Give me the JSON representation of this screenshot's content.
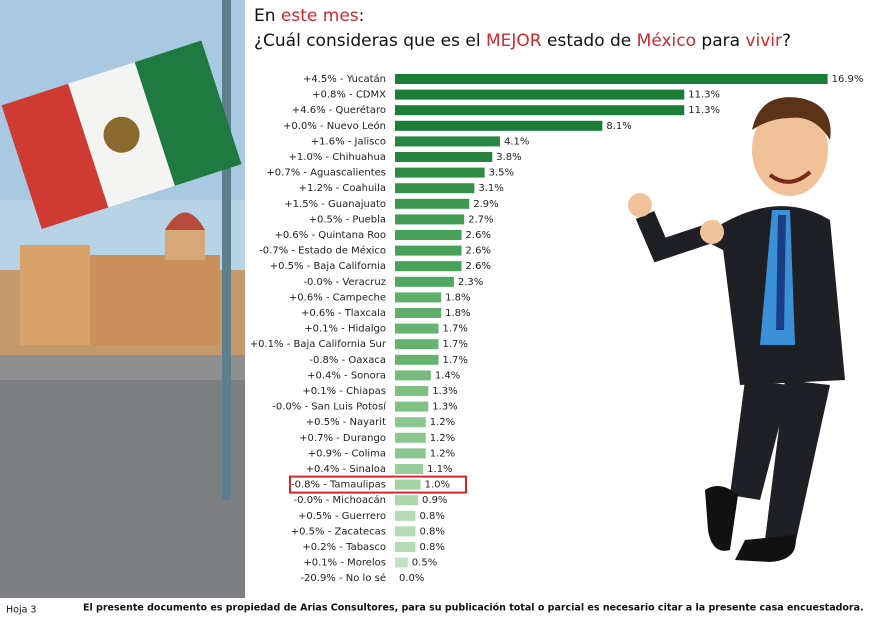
{
  "chart_data": {
    "type": "bar",
    "orientation": "horizontal",
    "title_lines": [
      [
        {
          "text": "En "
        },
        {
          "text": "este mes",
          "highlight": true
        },
        {
          "text": ":"
        }
      ],
      [
        {
          "text": "¿Cuál consideras que es el "
        },
        {
          "text": "MEJOR",
          "highlight": true
        },
        {
          "text": " estado de "
        },
        {
          "text": "México",
          "highlight": true
        },
        {
          "text": " para "
        },
        {
          "text": "vivir",
          "highlight": true
        },
        {
          "text": "?"
        }
      ]
    ],
    "categories": [
      "+4.5% - Yucatán",
      "+0.8% - CDMX",
      "+4.6% - Querétaro",
      "+0.0% - Nuevo León",
      "+1.6% - Jalisco",
      "+1.0% - Chihuahua",
      "+0.7% - Aguascalientes",
      "+1.2% - Coahuila",
      "+1.5% - Guanajuato",
      "+0.5% - Puebla",
      "+0.6% - Quintana Roo",
      "-0.7% - Estado de México",
      "+0.5% - Baja California",
      "-0.0% - Veracruz",
      "+0.6% - Campeche",
      "+0.6% - Tlaxcala",
      "+0.1% - Hidalgo",
      "+0.1% - Baja California Sur",
      "-0.8% - Oaxaca",
      "+0.4% - Sonora",
      "+0.1% - Chiapas",
      "-0.0% - San Luis Potosí",
      "+0.5% - Nayarit",
      "+0.7% - Durango",
      "+0.9% - Colima",
      "+0.4% - Sinaloa",
      "-0.8% - Tamaulipas",
      "-0.0% - Michoacán",
      "+0.5% - Guerrero",
      "+0.5% - Zacatecas",
      "+0.2% - Tabasco",
      "+0.1% - Morelos",
      "-20.9% - No lo sé"
    ],
    "values": [
      16.9,
      11.3,
      11.3,
      8.1,
      4.1,
      3.8,
      3.5,
      3.1,
      2.9,
      2.7,
      2.6,
      2.6,
      2.6,
      2.3,
      1.8,
      1.8,
      1.7,
      1.7,
      1.7,
      1.4,
      1.3,
      1.3,
      1.2,
      1.2,
      1.2,
      1.1,
      1.0,
      0.9,
      0.8,
      0.8,
      0.8,
      0.5,
      0.0
    ],
    "value_labels": [
      "16.9%",
      "11.3%",
      "11.3%",
      "8.1%",
      "4.1%",
      "3.8%",
      "3.5%",
      "3.1%",
      "2.9%",
      "2.7%",
      "2.6%",
      "2.6%",
      "2.6%",
      "2.3%",
      "1.8%",
      "1.8%",
      "1.7%",
      "1.7%",
      "1.7%",
      "1.4%",
      "1.3%",
      "1.3%",
      "1.2%",
      "1.2%",
      "1.2%",
      "1.1%",
      "1.0%",
      "0.9%",
      "0.8%",
      "0.8%",
      "0.8%",
      "0.5%",
      "0.0%"
    ],
    "colors": [
      "#1b7d38",
      "#1b7d38",
      "#1b7d38",
      "#1b7d38",
      "#268640",
      "#268640",
      "#2e8c44",
      "#36924a",
      "#3c984e",
      "#429c53",
      "#48a158",
      "#48a158",
      "#48a158",
      "#52a760",
      "#5fae69",
      "#5fae69",
      "#66b26f",
      "#66b26f",
      "#66b26f",
      "#76bb7d",
      "#7fc085",
      "#7fc085",
      "#8bc790",
      "#8bc790",
      "#8bc790",
      "#97cd9b",
      "#a2d3a5",
      "#abd8ad",
      "#b4dcb6",
      "#b4dcb6",
      "#b4dcb6",
      "#c1e3c2",
      "#cfe9cf"
    ],
    "highlight_index": 26,
    "footer_left": "Hoja 3",
    "footer": "El presente documento es propiedad de Arias Consultores, para su publicación total o parcial es necesario citar a la presente casa encuestadora."
  }
}
